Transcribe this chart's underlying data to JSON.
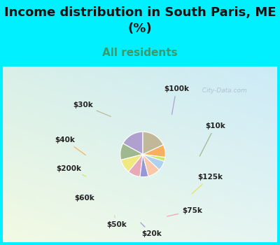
{
  "title": "Income distribution in South Paris, ME\n(%)",
  "subtitle": "All residents",
  "title_fontsize": 13,
  "subtitle_fontsize": 11,
  "title_color": "#111111",
  "subtitle_color": "#3a9a6e",
  "bg_cyan": "#00f0ff",
  "bg_chart_colors": [
    "#d8f0e8",
    "#e8f8f0",
    "#c8e8f8"
  ],
  "labels": [
    "$100k",
    "$10k",
    "$125k",
    "$75k",
    "$20k",
    "$50k",
    "$60k",
    "$200k",
    "$40k",
    "$30k"
  ],
  "sizes": [
    17,
    12,
    10,
    9,
    6,
    9,
    7,
    3,
    9,
    18
  ],
  "colors": [
    "#b0a0d0",
    "#a0b890",
    "#f0e880",
    "#e8a8b8",
    "#9898d8",
    "#f8c8a8",
    "#b0d0f0",
    "#c8e870",
    "#f8b060",
    "#c0b898"
  ],
  "line_colors": [
    "#b0a0d0",
    "#a0b890",
    "#e8e060",
    "#e8a8b8",
    "#9898d8",
    "#f8c8a8",
    "#b0d0f0",
    "#c8e870",
    "#f8b060",
    "#c0b898"
  ],
  "startangle": 90,
  "watermark": "  City-Data.com"
}
